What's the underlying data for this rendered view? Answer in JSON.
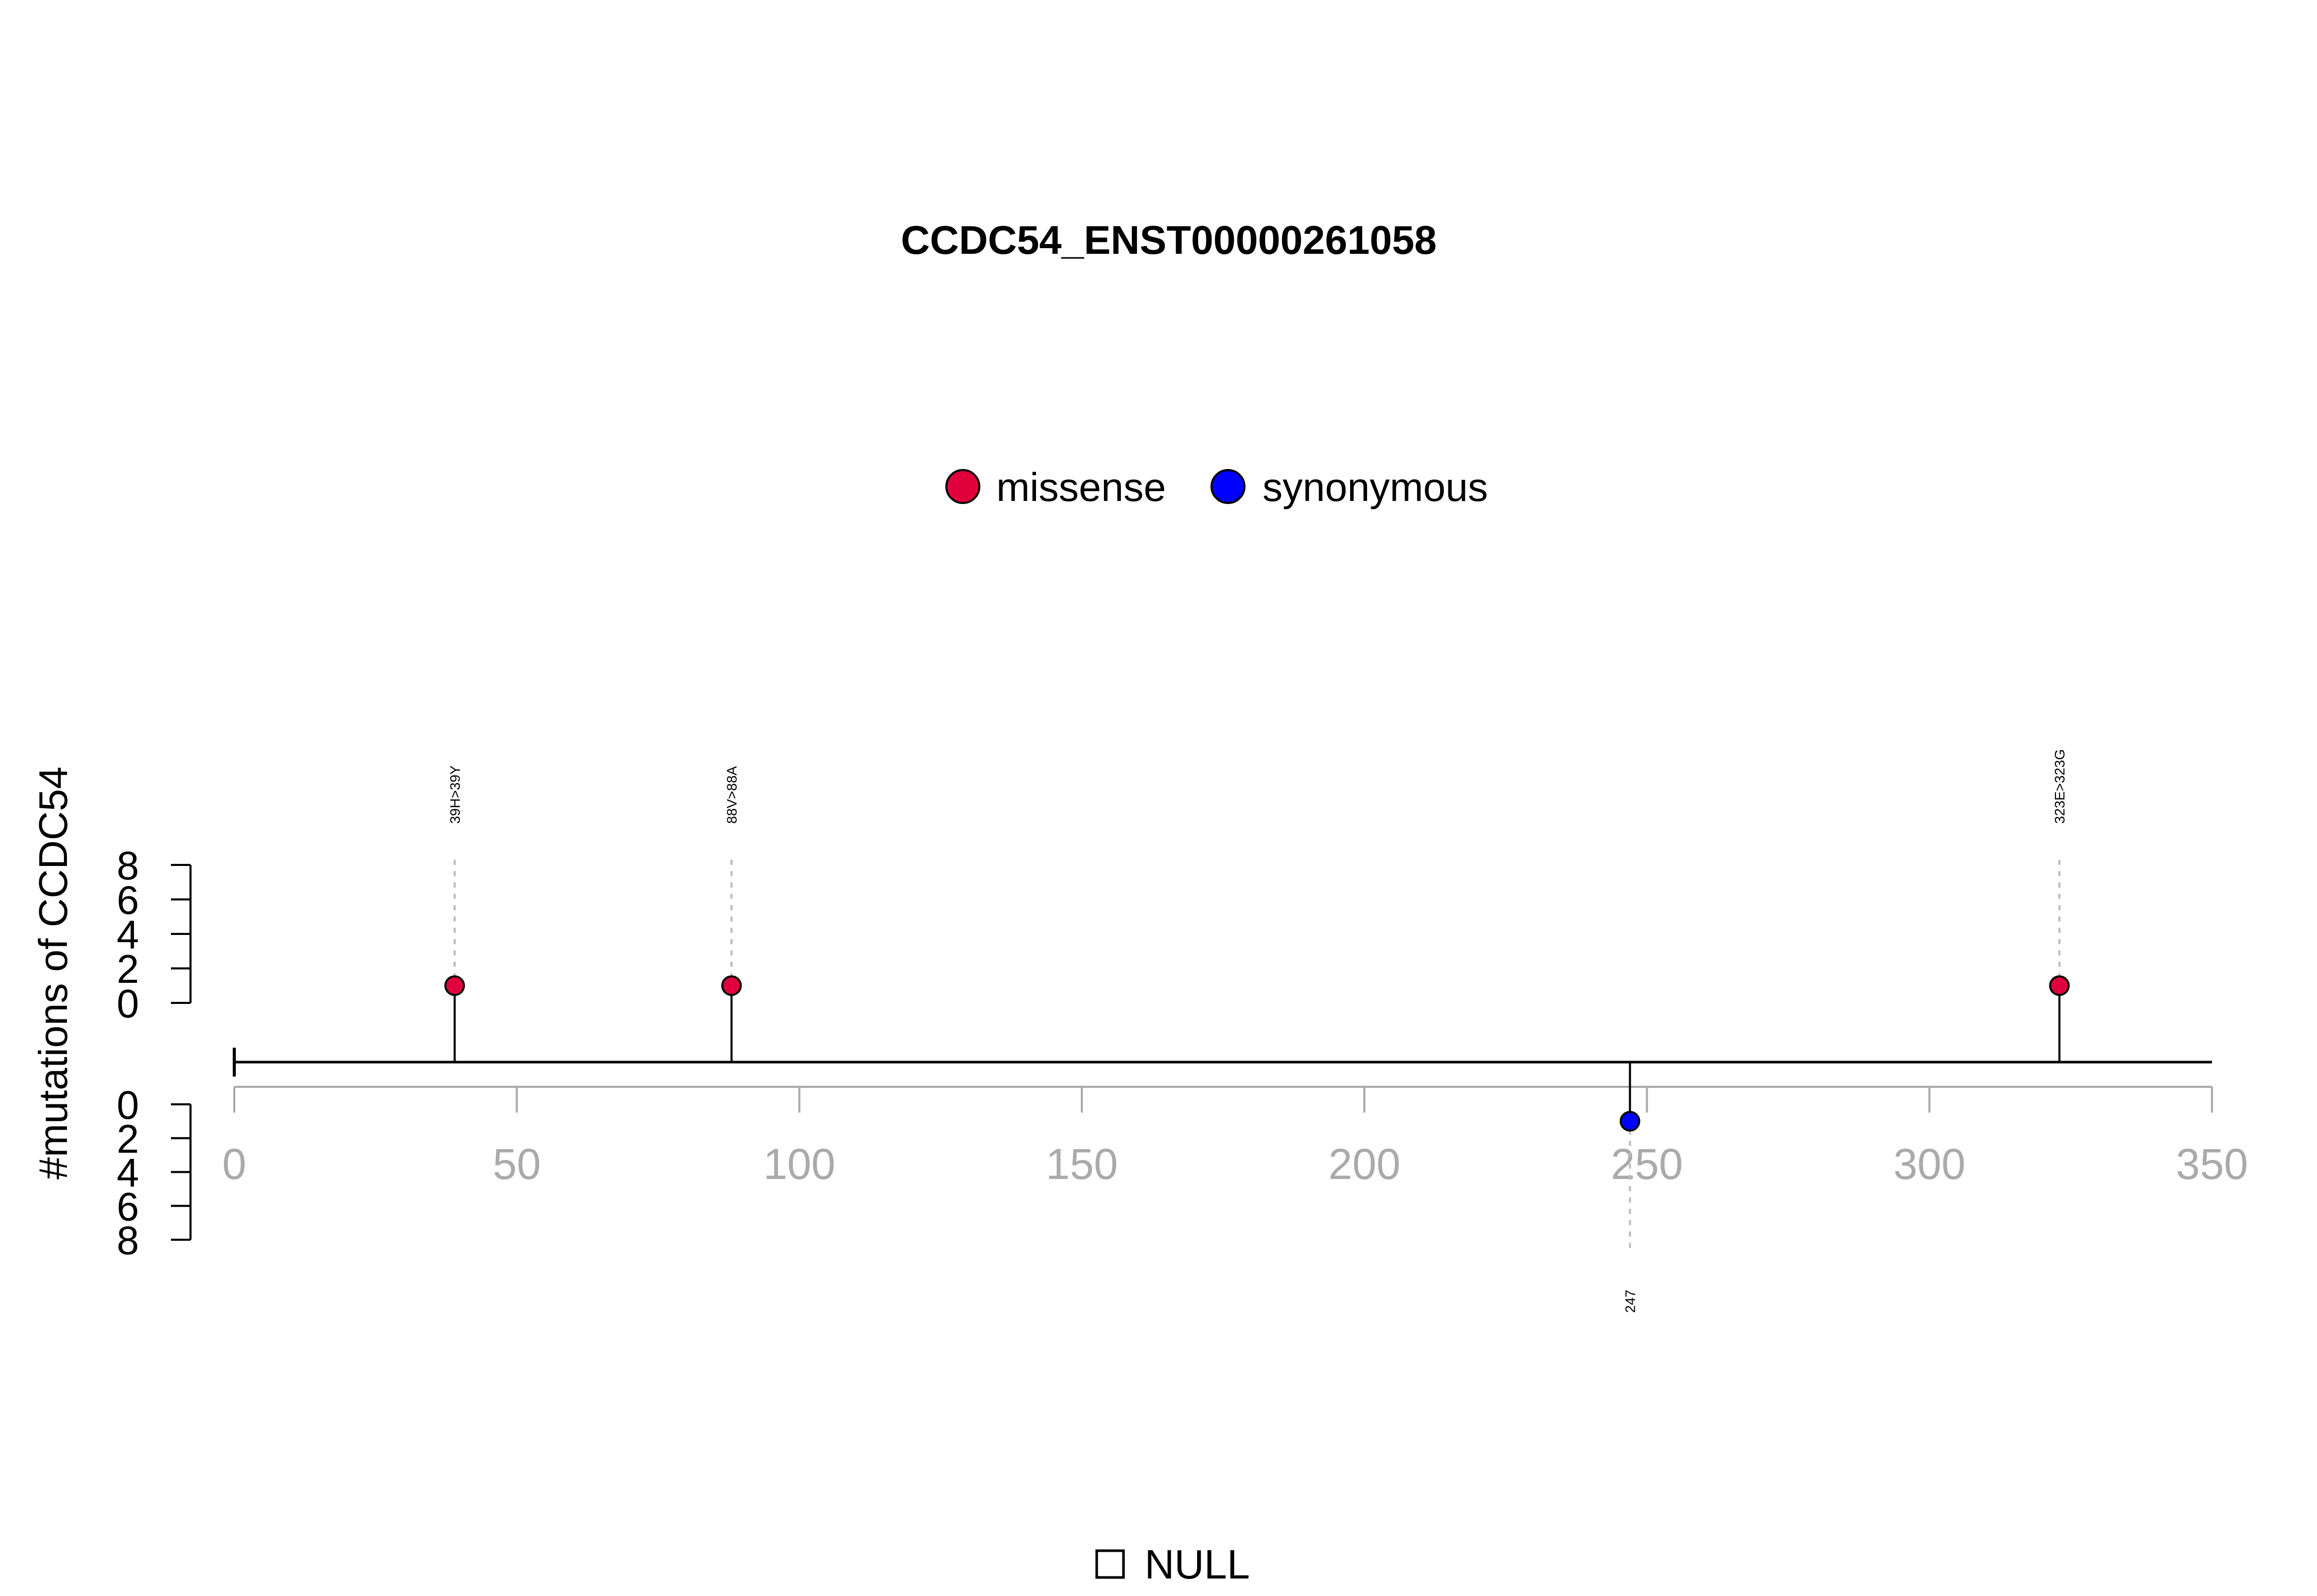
{
  "chart_data": {
    "type": "lollipop",
    "title": "CCDC54_ENST00000261058",
    "ylabel": "#mutations of CCDC54",
    "xlim": [
      0,
      350
    ],
    "x_ticks": [
      0,
      50,
      100,
      150,
      200,
      250,
      300,
      350
    ],
    "protein_length": 350,
    "top_y_ticks": [
      0,
      2,
      4,
      6,
      8
    ],
    "bottom_y_ticks": [
      0,
      2,
      4,
      6,
      8
    ],
    "legend": [
      {
        "label": "missense",
        "color": "#E0003C"
      },
      {
        "label": "synonymous",
        "color": "#0000FF"
      }
    ],
    "mutations": [
      {
        "position": 39,
        "count": 1,
        "type": "missense",
        "label": "39H>39Y",
        "side": "top"
      },
      {
        "position": 88,
        "count": 1,
        "type": "missense",
        "label": "88V>88A",
        "side": "top"
      },
      {
        "position": 247,
        "count": 1,
        "type": "synonymous",
        "label": "247",
        "side": "bottom"
      },
      {
        "position": 323,
        "count": 1,
        "type": "missense",
        "label": "323E>323G",
        "side": "top"
      }
    ],
    "domains_legend": [
      {
        "label": "NULL",
        "color": "#ffffff"
      }
    ]
  }
}
